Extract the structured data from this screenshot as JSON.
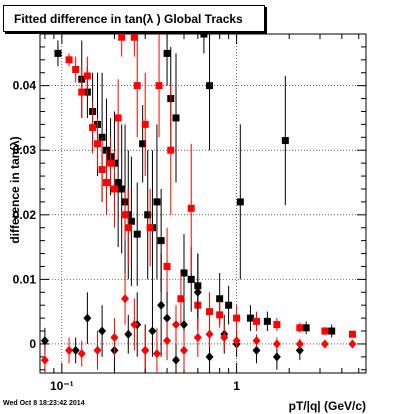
{
  "chart_data": {
    "type": "scatter",
    "title": "Fitted difference in tan(λ )  Global Tracks",
    "xlabel": "pT/|q| (GeV/c)",
    "ylabel": "difference in tan(λ)",
    "x_scale": "log",
    "xlim": [
      0.075,
      5.5
    ],
    "ylim": [
      -0.0045,
      0.048
    ],
    "x_ticks": [
      {
        "value": 0.1,
        "label": "10⁻¹"
      },
      {
        "value": 1,
        "label": "1"
      }
    ],
    "y_ticks": [
      {
        "value": 0,
        "label": "0"
      },
      {
        "value": 0.01,
        "label": "0.01"
      },
      {
        "value": 0.02,
        "label": "0.02"
      },
      {
        "value": 0.03,
        "label": "0.03"
      },
      {
        "value": 0.04,
        "label": "0.04"
      }
    ],
    "grid": true,
    "timestamp": "Wed Oct  8 18:23:42 2014",
    "series": [
      {
        "color": "#000000",
        "marker": "square",
        "points": [
          [
            0.095,
            0.045,
            0.002
          ],
          [
            0.13,
            0.041,
            0.006
          ],
          [
            0.14,
            0.039,
            0.004
          ],
          [
            0.15,
            0.036,
            0.006
          ],
          [
            0.16,
            0.034,
            0.008
          ],
          [
            0.17,
            0.032,
            0.01
          ],
          [
            0.18,
            0.03,
            0.008
          ],
          [
            0.19,
            0.029,
            0.006
          ],
          [
            0.2,
            0.028,
            0.008
          ],
          [
            0.21,
            0.025,
            0.01
          ],
          [
            0.22,
            0.024,
            0.01
          ],
          [
            0.23,
            0.022,
            0.012
          ],
          [
            0.24,
            0.02,
            0.01
          ],
          [
            0.25,
            0.019,
            0.01
          ],
          [
            0.27,
            0.017,
            0.008
          ],
          [
            0.29,
            0.031,
            0.006
          ],
          [
            0.31,
            0.02,
            0.01
          ],
          [
            0.33,
            0.018,
            0.012
          ],
          [
            0.35,
            0.022,
            0.012
          ],
          [
            0.37,
            0.016,
            0.008
          ],
          [
            0.4,
            0.045,
            0.005
          ],
          [
            0.42,
            0.038,
            0.008
          ],
          [
            0.45,
            0.035,
            0.01
          ],
          [
            0.5,
            0.011,
            0.006
          ],
          [
            0.55,
            0.01,
            0.005
          ],
          [
            0.6,
            0.009,
            0.005
          ],
          [
            0.65,
            0.048,
            0.003
          ],
          [
            0.7,
            0.04,
            0.01
          ],
          [
            0.8,
            0.007,
            0.004
          ],
          [
            0.9,
            0.006,
            0.003
          ],
          [
            1.05,
            0.022,
            0.012
          ],
          [
            1.2,
            0.004,
            0.002
          ],
          [
            1.5,
            0.0035,
            0.0015
          ],
          [
            1.9,
            0.0315,
            0.01
          ],
          [
            2.5,
            0.0025,
            0.001
          ],
          [
            3.5,
            0.002,
            0.001
          ]
        ]
      },
      {
        "color": "#ff0000",
        "marker": "square",
        "points": [
          [
            0.11,
            0.044,
            0.001
          ],
          [
            0.12,
            0.0425,
            0.002
          ],
          [
            0.13,
            0.039,
            0.004
          ],
          [
            0.14,
            0.0415,
            0.003
          ],
          [
            0.15,
            0.0335,
            0.004
          ],
          [
            0.16,
            0.031,
            0.004
          ],
          [
            0.17,
            0.027,
            0.005
          ],
          [
            0.18,
            0.025,
            0.005
          ],
          [
            0.19,
            0.028,
            0.004
          ],
          [
            0.2,
            0.024,
            0.006
          ],
          [
            0.21,
            0.035,
            0.006
          ],
          [
            0.22,
            0.0475,
            0.003
          ],
          [
            0.23,
            0.02,
            0.004
          ],
          [
            0.24,
            0.018,
            0.006
          ],
          [
            0.26,
            0.0475,
            0.003
          ],
          [
            0.27,
            0.04,
            0.008
          ],
          [
            0.3,
            0.034,
            0.008
          ],
          [
            0.32,
            0.018,
            0.006
          ],
          [
            0.36,
            0.04,
            0.008
          ],
          [
            0.4,
            0.012,
            0.006
          ],
          [
            0.42,
            0.03,
            0.01
          ],
          [
            0.48,
            0.007,
            0.004
          ],
          [
            0.55,
            0.021,
            0.01
          ],
          [
            0.6,
            0.006,
            0.003
          ],
          [
            0.7,
            0.005,
            0.003
          ],
          [
            0.8,
            0.0045,
            0.002
          ],
          [
            1.0,
            0.004,
            0.002
          ],
          [
            1.3,
            0.0035,
            0.0015
          ],
          [
            1.7,
            0.003,
            0.001
          ],
          [
            2.3,
            0.0025,
            0.0008
          ],
          [
            3.2,
            0.002,
            0.0006
          ],
          [
            4.6,
            0.0015,
            0.0005
          ]
        ]
      },
      {
        "color": "#000000",
        "marker": "diamond",
        "points": [
          [
            0.08,
            0.0005,
            0.002
          ],
          [
            0.12,
            -0.001,
            0.002
          ],
          [
            0.14,
            0.004,
            0.004
          ],
          [
            0.17,
            0.002,
            0.004
          ],
          [
            0.2,
            -0.001,
            0.003
          ],
          [
            0.24,
            0.0015,
            0.003
          ],
          [
            0.27,
            0.003,
            0.005
          ],
          [
            0.3,
            -0.001,
            0.004
          ],
          [
            0.33,
            0.002,
            0.004
          ],
          [
            0.37,
            0.006,
            0.008
          ],
          [
            0.4,
            0.004,
            0.004
          ],
          [
            0.45,
            -0.0025,
            0.005
          ],
          [
            0.5,
            0.003,
            0.004
          ],
          [
            0.6,
            0.008,
            0.006
          ],
          [
            0.7,
            -0.002,
            0.004
          ],
          [
            0.85,
            0.0015,
            0.003
          ],
          [
            1.0,
            0.0,
            0.002
          ],
          [
            1.3,
            -0.001,
            0.002
          ],
          [
            1.7,
            -0.002,
            0.002
          ],
          [
            2.3,
            -0.001,
            0.0015
          ]
        ]
      },
      {
        "color": "#ff0000",
        "marker": "diamond",
        "points": [
          [
            0.08,
            -0.0025,
            0.002
          ],
          [
            0.11,
            -0.001,
            0.002
          ],
          [
            0.13,
            -0.0015,
            0.002
          ],
          [
            0.16,
            -0.001,
            0.003
          ],
          [
            0.2,
            0.001,
            0.003
          ],
          [
            0.23,
            0.007,
            0.004
          ],
          [
            0.26,
            0.003,
            0.004
          ],
          [
            0.3,
            -0.001,
            0.003
          ],
          [
            0.35,
            -0.0015,
            0.004
          ],
          [
            0.4,
            0.0005,
            0.003
          ],
          [
            0.45,
            0.003,
            0.003
          ],
          [
            0.5,
            -0.001,
            0.003
          ],
          [
            0.6,
            0.001,
            0.003
          ],
          [
            0.7,
            0.0015,
            0.002
          ],
          [
            0.85,
            0.001,
            0.002
          ],
          [
            1.0,
            0.0005,
            0.0015
          ],
          [
            1.3,
            0.0005,
            0.001
          ],
          [
            1.7,
            0.0,
            0.001
          ],
          [
            2.3,
            0.0,
            0.0008
          ],
          [
            3.2,
            0.0,
            0.0006
          ],
          [
            4.6,
            0.0,
            0.0005
          ]
        ]
      }
    ]
  }
}
